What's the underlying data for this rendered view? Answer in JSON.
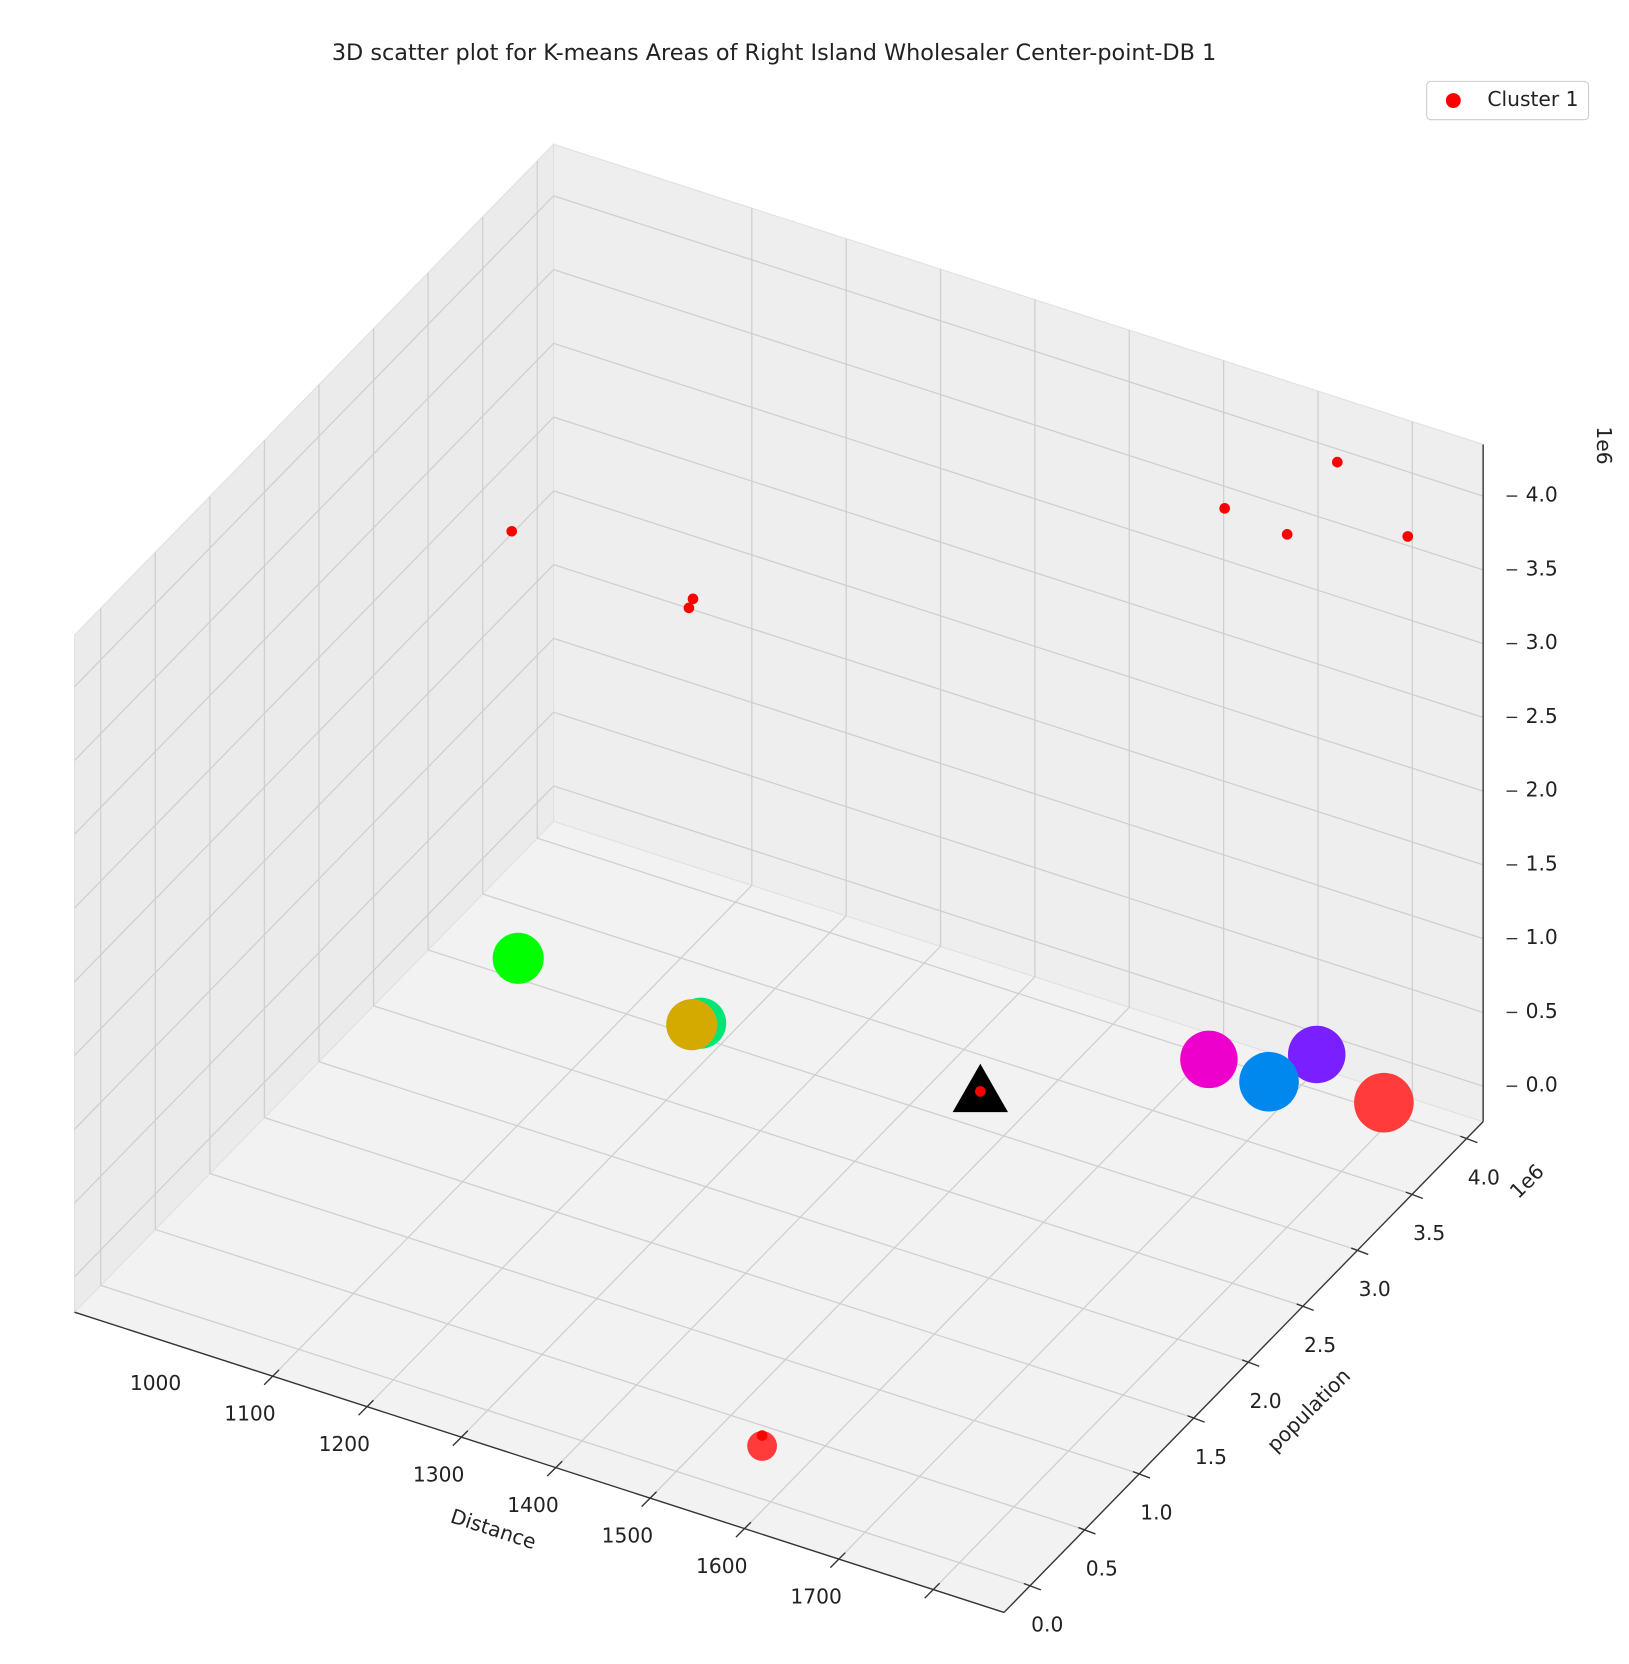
{
  "chart_data": {
    "type": "scatter3d",
    "title": "3D scatter plot for K-means Areas of Right Island Wholesaler Center-point-DB 1",
    "xlabel": "Distance",
    "ylabel": "population",
    "y_offset_label": "1e6",
    "z_offset_label": "1e6",
    "xlim": [
      790,
      1775
    ],
    "ylim": [
      -0.24,
      4.15
    ],
    "zlim": [
      -0.24,
      4.35
    ],
    "xticks": [
      1000,
      1100,
      1200,
      1300,
      1400,
      1500,
      1600,
      1700
    ],
    "yticks": [
      {
        "value": 0,
        "label": "0.0"
      },
      {
        "value": 0.5,
        "label": "0.5"
      },
      {
        "value": 1,
        "label": "1.0"
      },
      {
        "value": 1.5,
        "label": "1.5"
      },
      {
        "value": 2,
        "label": "2.0"
      },
      {
        "value": 2.5,
        "label": "2.5"
      },
      {
        "value": 3,
        "label": "3.0"
      },
      {
        "value": 3.5,
        "label": "3.5"
      },
      {
        "value": 4,
        "label": "4.0"
      }
    ],
    "zticks": [
      {
        "value": 0,
        "label": "0.0"
      },
      {
        "value": 0.5,
        "label": "0.5"
      },
      {
        "value": 1,
        "label": "1.0"
      },
      {
        "value": 1.5,
        "label": "1.5"
      },
      {
        "value": 2,
        "label": "2.0"
      },
      {
        "value": 2.5,
        "label": "2.5"
      },
      {
        "value": 3,
        "label": "3.0"
      },
      {
        "value": 3.5,
        "label": "3.5"
      },
      {
        "value": 4,
        "label": "4.0"
      }
    ],
    "grid": true,
    "legend": "upper right",
    "series": [
      {
        "color": "#00ff00",
        "marker": "circle",
        "size": 24,
        "x": [
          897
        ],
        "y": [
          2.9
        ],
        "z": [
          0
        ]
      },
      {
        "color": "#00e676",
        "marker": "circle",
        "size": 24,
        "x": [
          1095
        ],
        "y": [
          2.86
        ],
        "z": [
          0
        ]
      },
      {
        "color": "#d4aa00",
        "marker": "circle",
        "size": 24,
        "x": [
          1089
        ],
        "y": [
          2.83
        ],
        "z": [
          0
        ]
      },
      {
        "color": "#ee00cc",
        "marker": "circle",
        "size": 27,
        "x": [
          1533
        ],
        "y": [
          3.73
        ],
        "z": [
          0
        ]
      },
      {
        "color": "#7a1fff",
        "marker": "circle",
        "size": 27,
        "x": [
          1616
        ],
        "y": [
          4.0
        ],
        "z": [
          0
        ]
      },
      {
        "color": "#0088ee",
        "marker": "circle",
        "size": 28,
        "x": [
          1599
        ],
        "y": [
          3.71
        ],
        "z": [
          0
        ]
      },
      {
        "color": "#ff3b3b",
        "marker": "circle",
        "size": 28,
        "x": [
          1708
        ],
        "y": [
          3.82
        ],
        "z": [
          0
        ]
      },
      {
        "color": "#ff3b3b",
        "marker": "circle",
        "size": 14,
        "x": [
          1477
        ],
        "y": [
          0.12
        ],
        "z": [
          0
        ]
      },
      {
        "color": "#000000",
        "marker": "triangle",
        "size": 26,
        "x": [
          1374
        ],
        "y": [
          3.01
        ],
        "z": [
          0
        ]
      },
      {
        "name": "Cluster 1",
        "color": "#ff0000",
        "marker": "circle",
        "size": 5,
        "x": [
          904,
          1049,
          1051,
          1530,
          1624,
          1654,
          1746,
          1374,
          1477
        ],
        "y": [
          2.78,
          3.15,
          3.17,
          3.9,
          3.66,
          3.86,
          3.71,
          3.01,
          0.12
        ],
        "z": [
          3.0,
          2.5,
          2.55,
          3.6,
          3.8,
          4.2,
          4.0,
          0,
          0.07
        ]
      }
    ]
  }
}
